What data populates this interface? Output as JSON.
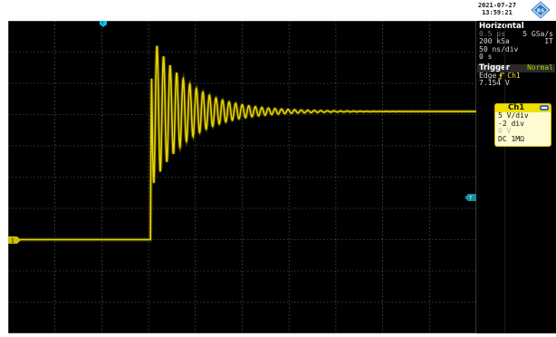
{
  "header": {
    "date": "2021-07-27",
    "time": "13:59:21",
    "logo": "rohde-schwarz-logo"
  },
  "horizontal": {
    "title": "Horizontal",
    "time_per_sample": "0.5 ps",
    "sample_rate": "5 GSa/s",
    "record_length": "200 kSa",
    "mode": "IT",
    "time_scale": "50 ns/div",
    "position": "0 s"
  },
  "trigger": {
    "title": "Trigger",
    "mode": "Normal",
    "type": "Edge",
    "slope_icon": "rising-edge-icon",
    "source": "Ch1",
    "level": "7.154 V"
  },
  "channel1": {
    "title": "Ch1",
    "vertical_scale": "5 V/div",
    "offset_div": "-2 div",
    "offset_v": "0 V",
    "coupling": "DC 1MΩ"
  },
  "markers": {
    "ground_label": "1",
    "trigger_level_label": "T",
    "trigger_position_label": "T"
  },
  "colors": {
    "trace": "#e8d400",
    "grid": "#6e6e6e",
    "background": "#000000",
    "marker": "#00b8e0"
  },
  "chart_data": {
    "type": "line",
    "title": "",
    "xlabel": "",
    "ylabel": "",
    "x_unit": "ns",
    "y_unit": "V",
    "xlim": [
      -250,
      250
    ],
    "ylim": [
      -15,
      35
    ],
    "grid": true,
    "x_divisions": 10,
    "y_divisions": 10,
    "series": [
      {
        "step_time_ns": -98,
        "baseline_v": 0,
        "overshoot_peak_v": 33,
        "settled_v": 20.5,
        "ringing_period_ns": 7,
        "decay_ns": 40,
        "trace_width_v": 0.4
      }
    ]
  }
}
